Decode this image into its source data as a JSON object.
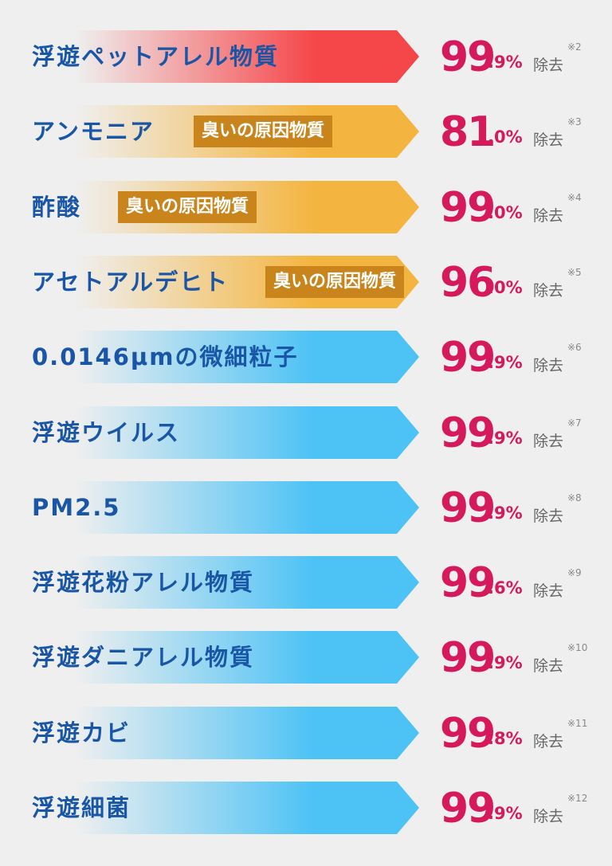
{
  "items": [
    {
      "label": "浮遊ペットアレル物質",
      "int": "99",
      "dec": ".9%",
      "suffix": "除去",
      "note": "※2",
      "color": "#f5474a"
    },
    {
      "label": "アンモニア",
      "tag": "臭いの原因物質",
      "int": "81",
      "dec": ".0%",
      "suffix": "除去",
      "note": "※3",
      "color": "#f4b540"
    },
    {
      "label": "酢酸",
      "tag": "臭いの原因物質",
      "int": "99",
      "dec": ".0%",
      "suffix": "除去",
      "note": "※4",
      "color": "#f4b540"
    },
    {
      "label": "アセトアルデヒト",
      "tag": "臭いの原因物質",
      "int": "96",
      "dec": ".0%",
      "suffix": "除去",
      "note": "※5",
      "color": "#f4b540"
    },
    {
      "label": "0.0146μmの微細粒子",
      "int": "99",
      "dec": ".9%",
      "suffix": "除去",
      "note": "※6",
      "color": "#4cc2f5"
    },
    {
      "label": "浮遊ウイルス",
      "int": "99",
      "dec": ".9%",
      "suffix": "除去",
      "note": "※7",
      "color": "#4cc2f5"
    },
    {
      "label": "PM2.5",
      "int": "99",
      "dec": ".9%",
      "suffix": "除去",
      "note": "※8",
      "color": "#4cc2f5"
    },
    {
      "label": "浮遊花粉アレル物質",
      "int": "99",
      "dec": ".6%",
      "suffix": "除去",
      "note": "※9",
      "color": "#4cc2f5"
    },
    {
      "label": "浮遊ダニアレル物質",
      "int": "99",
      "dec": ".9%",
      "suffix": "除去",
      "note": "※10",
      "color": "#4cc2f5"
    },
    {
      "label": "浮遊カビ",
      "int": "99",
      "dec": ".8%",
      "suffix": "除去",
      "note": "※11",
      "color": "#4cc2f5"
    },
    {
      "label": "浮遊細菌",
      "int": "99",
      "dec": ".9%",
      "suffix": "除去",
      "note": "※12",
      "color": "#4cc2f5"
    }
  ]
}
